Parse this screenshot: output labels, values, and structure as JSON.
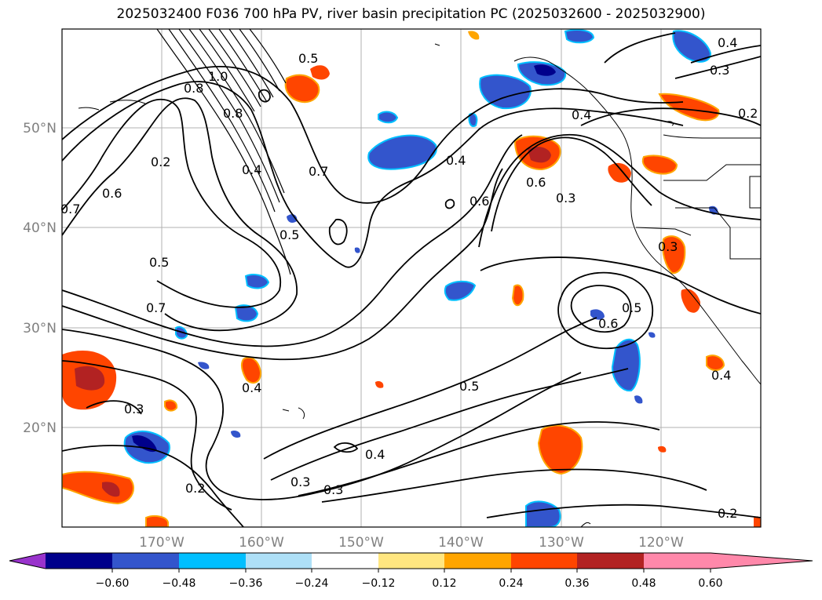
{
  "title": "2025032400 F036 700 hPa PV, river basin precipitation PC (2025032600 - 2025032900)",
  "lat_labels": [
    "50°N",
    "40°N",
    "30°N",
    "20°N"
  ],
  "lon_labels": [
    "170°W",
    "160°W",
    "150°W",
    "140°W",
    "130°W",
    "120°W"
  ],
  "contour_labels": [
    "0.7",
    "0.6",
    "0.2",
    "0.5",
    "0.7",
    "0.3",
    "0.2",
    "1.0",
    "0.8",
    "0.4",
    "0.8",
    "0.7",
    "0.5",
    "0.5",
    "0.4",
    "0.4",
    "0.6",
    "0.3",
    "0.4",
    "0.3",
    "0.6",
    "0.3",
    "0.4",
    "0.3",
    "0.6",
    "0.5",
    "0.5",
    "0.4",
    "0.3",
    "0.2",
    "0.2",
    "0.4"
  ],
  "colorbar": {
    "tick_labels": [
      "−0.60",
      "−0.48",
      "−0.36",
      "−0.24",
      "−0.12",
      "0.12",
      "0.24",
      "0.36",
      "0.48",
      "0.60"
    ],
    "colors": [
      "#9933cc",
      "#00008b",
      "#3355cc",
      "#00bfff",
      "#aee0f7",
      "#ffffff",
      "#ffe680",
      "#ffa500",
      "#ff4500",
      "#b22222",
      "#ff88aa"
    ]
  }
}
